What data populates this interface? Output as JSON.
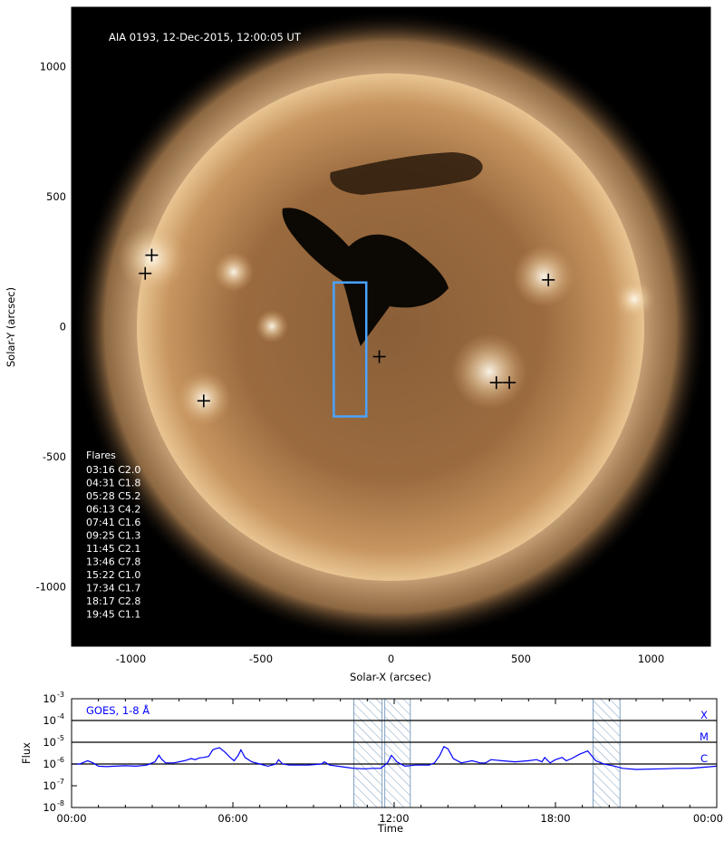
{
  "chart_data": [
    {
      "type": "image",
      "title": "AIA 0193, 12-Dec-2015, 12:00:05 UT",
      "xlabel": "Solar-X (arcsec)",
      "ylabel": "Solar-Y (arcsec)",
      "xlim": [
        -1228,
        1228
      ],
      "ylim": [
        -1228,
        1228
      ],
      "xticks": [
        -1000,
        -500,
        0,
        500,
        1000
      ],
      "yticks": [
        1000,
        500,
        0,
        -500,
        -1000
      ],
      "xtick_labels": [
        "-1000",
        "-500",
        "0",
        "500",
        "1000"
      ],
      "ytick_labels": [
        "1000",
        "500",
        "0",
        "-500",
        "-1000"
      ],
      "solar_radius_arcsec": 975,
      "box": {
        "x": [
          -220,
          -95
        ],
        "y": [
          -345,
          170
        ],
        "color": "#4aa3ff"
      },
      "flare_markers": [
        {
          "x": -920,
          "y": 275
        },
        {
          "x": -945,
          "y": 205
        },
        {
          "x": -720,
          "y": -285
        },
        {
          "x": -45,
          "y": -115
        },
        {
          "x": 405,
          "y": -215
        },
        {
          "x": 455,
          "y": -215
        },
        {
          "x": 605,
          "y": 180
        }
      ],
      "legend": {
        "title": "Flares",
        "entries": [
          "03:16 C2.0",
          "04:31 C1.8",
          "05:28 C5.2",
          "06:13 C4.2",
          "07:41 C1.6",
          "09:25 C1.3",
          "11:45 C2.1",
          "13:46 C7.8",
          "15:22 C1.0",
          "17:34 C1.7",
          "18:17 C2.8",
          "19:45 C1.1"
        ]
      }
    },
    {
      "type": "line",
      "title": "GOES, 1-8 Å",
      "xlabel": "Time",
      "ylabel": "Flux",
      "xlim": [
        0,
        24
      ],
      "ylim_log10": [
        -8,
        -3
      ],
      "xticks": [
        0,
        6,
        12,
        18,
        24
      ],
      "xtick_labels": [
        "00:00",
        "06:00",
        "12:00",
        "18:00",
        "00:00"
      ],
      "ytick_exponents": [
        -3,
        -4,
        -5,
        -6,
        -7,
        -8
      ],
      "ytick_base": "10",
      "class_lines": [
        {
          "label": "X",
          "log10": -4
        },
        {
          "label": "M",
          "log10": -5
        },
        {
          "label": "C",
          "log10": -6
        }
      ],
      "shaded_intervals": [
        [
          10.5,
          11.55
        ],
        [
          11.65,
          12.6
        ],
        [
          19.4,
          20.4
        ]
      ],
      "series_color": "#0000ff",
      "series": [
        {
          "x": [
            0,
            0.3,
            0.6,
            0.8,
            1.0,
            1.3,
            1.6,
            2.0,
            2.4,
            2.8,
            3.1,
            3.25,
            3.35,
            3.5,
            3.8,
            4.2,
            4.45,
            4.6,
            4.75,
            4.9,
            5.1,
            5.25,
            5.35,
            5.5,
            5.7,
            5.9,
            6.05,
            6.2,
            6.3,
            6.45,
            6.7,
            7.0,
            7.3,
            7.6,
            7.7,
            7.85,
            8.1,
            8.4,
            8.8,
            9.3,
            9.4,
            9.6,
            9.9,
            10.2,
            10.5,
            10.9,
            11.2,
            11.5,
            11.75,
            11.9,
            12.1,
            12.4,
            12.8,
            13.1,
            13.3,
            13.5,
            13.7,
            13.85,
            14.0,
            14.2,
            14.5,
            14.9,
            15.2,
            15.4,
            15.6,
            16.0,
            16.5,
            17.0,
            17.3,
            17.5,
            17.6,
            17.8,
            18.0,
            18.25,
            18.4,
            18.6,
            18.9,
            19.2,
            19.5,
            19.8,
            20.0,
            20.2,
            20.5,
            21.0,
            22.0,
            22.5,
            23.0,
            23.5,
            24.0
          ],
          "log10_flux": [
            -6.0,
            -6.0,
            -5.85,
            -5.95,
            -6.1,
            -6.12,
            -6.1,
            -6.08,
            -6.1,
            -6.05,
            -5.9,
            -5.6,
            -5.78,
            -5.95,
            -5.95,
            -5.85,
            -5.75,
            -5.8,
            -5.72,
            -5.7,
            -5.65,
            -5.35,
            -5.3,
            -5.25,
            -5.45,
            -5.7,
            -5.85,
            -5.6,
            -5.35,
            -5.7,
            -5.9,
            -6.0,
            -6.1,
            -6.0,
            -5.8,
            -6.0,
            -6.05,
            -6.05,
            -6.05,
            -6.0,
            -5.9,
            -6.05,
            -6.1,
            -6.15,
            -6.2,
            -6.22,
            -6.2,
            -6.2,
            -5.95,
            -5.6,
            -5.9,
            -6.1,
            -6.05,
            -6.05,
            -6.05,
            -5.95,
            -5.6,
            -5.2,
            -5.3,
            -5.75,
            -5.95,
            -5.85,
            -5.95,
            -5.95,
            -5.8,
            -5.85,
            -5.9,
            -5.85,
            -5.8,
            -5.9,
            -5.7,
            -5.95,
            -5.8,
            -5.7,
            -5.85,
            -5.75,
            -5.55,
            -5.4,
            -5.85,
            -6.0,
            -6.05,
            -6.1,
            -6.2,
            -6.25,
            -6.22,
            -6.2,
            -6.2,
            -6.15,
            -6.1
          ]
        }
      ]
    }
  ]
}
